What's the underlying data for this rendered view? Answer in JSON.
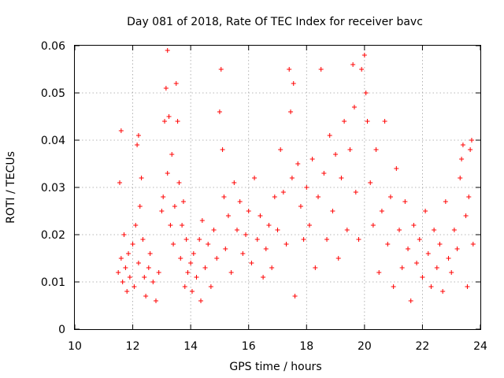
{
  "chart_data": {
    "type": "scatter",
    "title": "Day 081 of 2018, Rate Of TEC Index for receiver bavc",
    "xlabel": "GPS time / hours",
    "ylabel": "ROTI / TECUs",
    "xlim": [
      10,
      24
    ],
    "ylim": [
      0,
      0.06
    ],
    "x_ticks": [
      "10",
      "12",
      "14",
      "16",
      "18",
      "20",
      "22",
      "24"
    ],
    "y_ticks": [
      "0",
      "0.01",
      "0.02",
      "0.03",
      "0.04",
      "0.05",
      "0.06"
    ],
    "grid": true,
    "legend": "none",
    "marker": "plus",
    "color": "#ff0000",
    "series": [
      {
        "points": [
          [
            11.5,
            0.012
          ],
          [
            11.55,
            0.031
          ],
          [
            11.6,
            0.042
          ],
          [
            11.6,
            0.015
          ],
          [
            11.65,
            0.01
          ],
          [
            11.7,
            0.02
          ],
          [
            11.75,
            0.013
          ],
          [
            11.8,
            0.008
          ],
          [
            11.85,
            0.016
          ],
          [
            11.9,
            0.011
          ],
          [
            12.0,
            0.018
          ],
          [
            12.05,
            0.009
          ],
          [
            12.1,
            0.022
          ],
          [
            12.15,
            0.039
          ],
          [
            12.2,
            0.041
          ],
          [
            12.2,
            0.014
          ],
          [
            12.25,
            0.026
          ],
          [
            12.3,
            0.032
          ],
          [
            12.35,
            0.019
          ],
          [
            12.4,
            0.011
          ],
          [
            12.45,
            0.007
          ],
          [
            12.55,
            0.013
          ],
          [
            12.6,
            0.016
          ],
          [
            12.7,
            0.01
          ],
          [
            12.8,
            0.006
          ],
          [
            12.9,
            0.012
          ],
          [
            13.0,
            0.025
          ],
          [
            13.05,
            0.028
          ],
          [
            13.1,
            0.044
          ],
          [
            13.15,
            0.051
          ],
          [
            13.2,
            0.059
          ],
          [
            13.2,
            0.033
          ],
          [
            13.25,
            0.045
          ],
          [
            13.3,
            0.022
          ],
          [
            13.35,
            0.037
          ],
          [
            13.4,
            0.018
          ],
          [
            13.45,
            0.026
          ],
          [
            13.5,
            0.052
          ],
          [
            13.55,
            0.044
          ],
          [
            13.6,
            0.031
          ],
          [
            13.65,
            0.015
          ],
          [
            13.7,
            0.022
          ],
          [
            13.75,
            0.027
          ],
          [
            13.8,
            0.009
          ],
          [
            13.85,
            0.019
          ],
          [
            13.9,
            0.012
          ],
          [
            14.0,
            0.014
          ],
          [
            14.05,
            0.008
          ],
          [
            14.1,
            0.016
          ],
          [
            14.2,
            0.011
          ],
          [
            14.3,
            0.019
          ],
          [
            14.35,
            0.006
          ],
          [
            14.4,
            0.023
          ],
          [
            14.5,
            0.013
          ],
          [
            14.6,
            0.018
          ],
          [
            14.7,
            0.009
          ],
          [
            14.8,
            0.021
          ],
          [
            14.9,
            0.015
          ],
          [
            15.0,
            0.046
          ],
          [
            15.05,
            0.055
          ],
          [
            15.1,
            0.038
          ],
          [
            15.15,
            0.028
          ],
          [
            15.2,
            0.017
          ],
          [
            15.3,
            0.024
          ],
          [
            15.4,
            0.012
          ],
          [
            15.5,
            0.031
          ],
          [
            15.6,
            0.021
          ],
          [
            15.7,
            0.027
          ],
          [
            15.8,
            0.016
          ],
          [
            15.9,
            0.02
          ],
          [
            16.0,
            0.025
          ],
          [
            16.1,
            0.014
          ],
          [
            16.2,
            0.032
          ],
          [
            16.3,
            0.019
          ],
          [
            16.4,
            0.024
          ],
          [
            16.5,
            0.011
          ],
          [
            16.6,
            0.017
          ],
          [
            16.7,
            0.022
          ],
          [
            16.8,
            0.013
          ],
          [
            16.9,
            0.028
          ],
          [
            17.0,
            0.021
          ],
          [
            17.1,
            0.038
          ],
          [
            17.2,
            0.029
          ],
          [
            17.3,
            0.018
          ],
          [
            17.4,
            0.055
          ],
          [
            17.45,
            0.046
          ],
          [
            17.5,
            0.032
          ],
          [
            17.55,
            0.052
          ],
          [
            17.6,
            0.007
          ],
          [
            17.7,
            0.035
          ],
          [
            17.8,
            0.026
          ],
          [
            17.9,
            0.019
          ],
          [
            18.0,
            0.03
          ],
          [
            18.1,
            0.022
          ],
          [
            18.2,
            0.036
          ],
          [
            18.3,
            0.013
          ],
          [
            18.4,
            0.028
          ],
          [
            18.5,
            0.055
          ],
          [
            18.6,
            0.033
          ],
          [
            18.7,
            0.019
          ],
          [
            18.8,
            0.041
          ],
          [
            18.9,
            0.025
          ],
          [
            19.0,
            0.037
          ],
          [
            19.1,
            0.015
          ],
          [
            19.2,
            0.032
          ],
          [
            19.3,
            0.044
          ],
          [
            19.4,
            0.021
          ],
          [
            19.5,
            0.038
          ],
          [
            19.6,
            0.056
          ],
          [
            19.65,
            0.047
          ],
          [
            19.7,
            0.029
          ],
          [
            19.8,
            0.019
          ],
          [
            19.9,
            0.055
          ],
          [
            20.0,
            0.058
          ],
          [
            20.05,
            0.05
          ],
          [
            20.1,
            0.044
          ],
          [
            20.2,
            0.031
          ],
          [
            20.3,
            0.022
          ],
          [
            20.4,
            0.038
          ],
          [
            20.5,
            0.012
          ],
          [
            20.6,
            0.025
          ],
          [
            20.7,
            0.044
          ],
          [
            20.8,
            0.018
          ],
          [
            20.9,
            0.028
          ],
          [
            21.0,
            0.009
          ],
          [
            21.1,
            0.034
          ],
          [
            21.2,
            0.021
          ],
          [
            21.3,
            0.013
          ],
          [
            21.4,
            0.027
          ],
          [
            21.5,
            0.017
          ],
          [
            21.6,
            0.006
          ],
          [
            21.7,
            0.022
          ],
          [
            21.8,
            0.014
          ],
          [
            21.9,
            0.019
          ],
          [
            22.0,
            0.011
          ],
          [
            22.1,
            0.025
          ],
          [
            22.2,
            0.016
          ],
          [
            22.3,
            0.009
          ],
          [
            22.4,
            0.021
          ],
          [
            22.5,
            0.013
          ],
          [
            22.6,
            0.018
          ],
          [
            22.7,
            0.008
          ],
          [
            22.8,
            0.027
          ],
          [
            22.9,
            0.015
          ],
          [
            23.0,
            0.012
          ],
          [
            23.1,
            0.021
          ],
          [
            23.2,
            0.017
          ],
          [
            23.3,
            0.032
          ],
          [
            23.35,
            0.036
          ],
          [
            23.4,
            0.039
          ],
          [
            23.5,
            0.024
          ],
          [
            23.55,
            0.009
          ],
          [
            23.6,
            0.028
          ],
          [
            23.65,
            0.038
          ],
          [
            23.7,
            0.04
          ],
          [
            23.75,
            0.018
          ]
        ]
      }
    ]
  }
}
